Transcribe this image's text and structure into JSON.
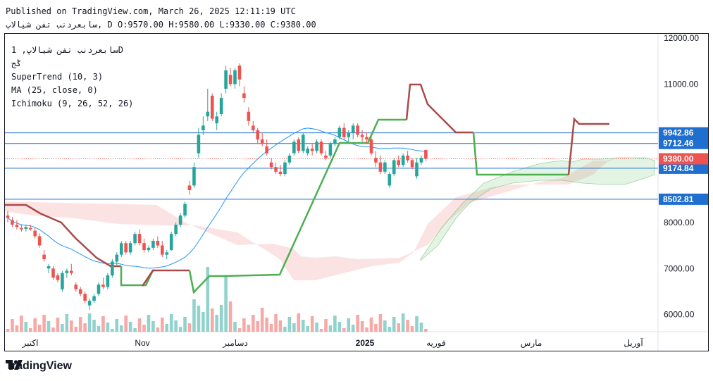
{
  "header": {
    "published": "Published on TradingView.com, March 26, 2025 12:11:19 UTC",
    "ohlc_line": "سابعردنب تفن شیالاپ, D O:9570.00 H:9580.00 L:9330.00 C:9380.00"
  },
  "legend": {
    "symbol": "سابعردنب تفن شیالاپ, 1D",
    "exchange": "ݣج",
    "supertrend": "SuperTrend (10, 3)",
    "ma": "MA (25, close, 0)",
    "ichimoku": "Ichimoku (9, 26, 52, 26)"
  },
  "brand": {
    "name": "TradingView"
  },
  "colors": {
    "up": "#26a69a",
    "down": "#ef5350",
    "st_up": "#4caf50",
    "st_down": "#a94a4a",
    "ma": "#2196f3",
    "hline": "#1e6fcf",
    "price_tag": "#ef5350"
  },
  "chart_data": {
    "type": "candlestick",
    "ylim": [
      5600,
      12150
    ],
    "y_ticks": [
      "12000.00",
      "11000.00",
      "8000.00",
      "7000.00",
      "6000.00"
    ],
    "y_tick_values": [
      12000,
      11000,
      8000,
      7000,
      6000
    ],
    "x_labels": [
      "اکتبر",
      "Nov",
      "دسامبر",
      "2025",
      "فوریه",
      "مارس",
      "آوریل"
    ],
    "x_label_bold": [
      false,
      false,
      false,
      true,
      false,
      false,
      false
    ],
    "horizontal_levels": [
      {
        "label": "9942.86",
        "value": 9942.86
      },
      {
        "label": "9712.46",
        "value": 9712.46
      },
      {
        "label": "9174.84",
        "value": 9174.84
      },
      {
        "label": "8502.81",
        "value": 8502.81
      }
    ],
    "last_price": {
      "label": "9380.00",
      "value": 9380
    },
    "candles": [
      {
        "o": 8150,
        "h": 8250,
        "l": 8000,
        "c": 8100
      },
      {
        "o": 8050,
        "h": 8120,
        "l": 7900,
        "c": 7950
      },
      {
        "o": 7950,
        "h": 8050,
        "l": 7850,
        "c": 7900
      },
      {
        "o": 7880,
        "h": 7960,
        "l": 7800,
        "c": 7850
      },
      {
        "o": 7860,
        "h": 7950,
        "l": 7800,
        "c": 7900
      },
      {
        "o": 7880,
        "h": 7950,
        "l": 7820,
        "c": 7850
      },
      {
        "o": 7820,
        "h": 7880,
        "l": 7650,
        "c": 7700
      },
      {
        "o": 7700,
        "h": 7760,
        "l": 7450,
        "c": 7500
      },
      {
        "o": 7300,
        "h": 7400,
        "l": 7150,
        "c": 7200
      },
      {
        "o": 7000,
        "h": 7100,
        "l": 6900,
        "c": 7050
      },
      {
        "o": 7000,
        "h": 7050,
        "l": 6750,
        "c": 6800
      },
      {
        "o": 6850,
        "h": 6900,
        "l": 6700,
        "c": 6750
      },
      {
        "o": 6550,
        "h": 6950,
        "l": 6500,
        "c": 6900
      },
      {
        "o": 6900,
        "h": 7000,
        "l": 6800,
        "c": 6950
      },
      {
        "o": 6950,
        "h": 7100,
        "l": 6850,
        "c": 6900
      },
      {
        "o": 6650,
        "h": 6700,
        "l": 6500,
        "c": 6550
      },
      {
        "o": 6550,
        "h": 6600,
        "l": 6400,
        "c": 6450
      },
      {
        "o": 6450,
        "h": 6500,
        "l": 6250,
        "c": 6300
      },
      {
        "o": 6200,
        "h": 6350,
        "l": 6100,
        "c": 6300
      },
      {
        "o": 6300,
        "h": 6450,
        "l": 6250,
        "c": 6400
      },
      {
        "o": 6450,
        "h": 6700,
        "l": 6400,
        "c": 6650
      },
      {
        "o": 6650,
        "h": 6800,
        "l": 6550,
        "c": 6600
      },
      {
        "o": 6600,
        "h": 6900,
        "l": 6550,
        "c": 6850
      },
      {
        "o": 6850,
        "h": 7200,
        "l": 6800,
        "c": 7150
      },
      {
        "o": 7150,
        "h": 7350,
        "l": 7050,
        "c": 7300
      },
      {
        "o": 7300,
        "h": 7600,
        "l": 7250,
        "c": 7550
      },
      {
        "o": 7550,
        "h": 7600,
        "l": 7300,
        "c": 7350
      },
      {
        "o": 7350,
        "h": 7600,
        "l": 7300,
        "c": 7550
      },
      {
        "o": 7550,
        "h": 7800,
        "l": 7500,
        "c": 7750
      },
      {
        "o": 7750,
        "h": 7850,
        "l": 7500,
        "c": 7550
      },
      {
        "o": 7550,
        "h": 7650,
        "l": 7350,
        "c": 7400
      },
      {
        "o": 7400,
        "h": 7500,
        "l": 7350,
        "c": 7450
      },
      {
        "o": 7450,
        "h": 7650,
        "l": 7400,
        "c": 7600
      },
      {
        "o": 7600,
        "h": 7700,
        "l": 7450,
        "c": 7500
      },
      {
        "o": 7500,
        "h": 7600,
        "l": 7250,
        "c": 7300
      },
      {
        "o": 7300,
        "h": 7400,
        "l": 7200,
        "c": 7350
      },
      {
        "o": 7400,
        "h": 7800,
        "l": 7380,
        "c": 7750
      },
      {
        "o": 7750,
        "h": 8000,
        "l": 7700,
        "c": 7950
      },
      {
        "o": 7950,
        "h": 8200,
        "l": 7900,
        "c": 8150
      },
      {
        "o": 8150,
        "h": 8450,
        "l": 8100,
        "c": 8400
      },
      {
        "o": 8800,
        "h": 8900,
        "l": 8600,
        "c": 8700
      },
      {
        "o": 8800,
        "h": 9300,
        "l": 8750,
        "c": 9200
      },
      {
        "o": 9500,
        "h": 10050,
        "l": 9400,
        "c": 9900
      },
      {
        "o": 10000,
        "h": 10300,
        "l": 9900,
        "c": 10100
      },
      {
        "o": 10300,
        "h": 10900,
        "l": 10200,
        "c": 10400
      },
      {
        "o": 10750,
        "h": 10800,
        "l": 10200,
        "c": 10250
      },
      {
        "o": 10150,
        "h": 10400,
        "l": 10000,
        "c": 10300
      },
      {
        "o": 10350,
        "h": 10800,
        "l": 10300,
        "c": 10700
      },
      {
        "o": 10900,
        "h": 11400,
        "l": 10800,
        "c": 11300
      },
      {
        "o": 11200,
        "h": 11350,
        "l": 10950,
        "c": 11000
      },
      {
        "o": 11000,
        "h": 11350,
        "l": 10900,
        "c": 11300
      },
      {
        "o": 11400,
        "h": 11450,
        "l": 10950,
        "c": 11100
      },
      {
        "o": 10800,
        "h": 10950,
        "l": 10600,
        "c": 10700
      },
      {
        "o": 10400,
        "h": 10500,
        "l": 10100,
        "c": 10200
      },
      {
        "o": 10100,
        "h": 10200,
        "l": 9950,
        "c": 10000
      },
      {
        "o": 10000,
        "h": 10050,
        "l": 9700,
        "c": 9800
      },
      {
        "o": 9800,
        "h": 9950,
        "l": 9650,
        "c": 9700
      },
      {
        "o": 9650,
        "h": 9800,
        "l": 9450,
        "c": 9500
      },
      {
        "o": 9300,
        "h": 9400,
        "l": 9150,
        "c": 9200
      },
      {
        "o": 9200,
        "h": 9300,
        "l": 9050,
        "c": 9100
      },
      {
        "o": 9100,
        "h": 9250,
        "l": 9000,
        "c": 9050
      },
      {
        "o": 9050,
        "h": 9350,
        "l": 9000,
        "c": 9300
      },
      {
        "o": 9300,
        "h": 9500,
        "l": 9250,
        "c": 9450
      },
      {
        "o": 9500,
        "h": 9800,
        "l": 9450,
        "c": 9750
      },
      {
        "o": 9800,
        "h": 9850,
        "l": 9500,
        "c": 9550
      },
      {
        "o": 9550,
        "h": 9950,
        "l": 9500,
        "c": 9900
      },
      {
        "o": 9500,
        "h": 9650,
        "l": 9450,
        "c": 9600
      },
      {
        "o": 9600,
        "h": 9700,
        "l": 9450,
        "c": 9550
      },
      {
        "o": 9550,
        "h": 9800,
        "l": 9500,
        "c": 9750
      },
      {
        "o": 9750,
        "h": 9800,
        "l": 9450,
        "c": 9500
      },
      {
        "o": 9450,
        "h": 9550,
        "l": 9350,
        "c": 9400
      },
      {
        "o": 9450,
        "h": 9750,
        "l": 9400,
        "c": 9700
      },
      {
        "o": 9700,
        "h": 9850,
        "l": 9650,
        "c": 9800
      },
      {
        "o": 9850,
        "h": 10100,
        "l": 9800,
        "c": 10050
      },
      {
        "o": 10050,
        "h": 10150,
        "l": 9800,
        "c": 9850
      },
      {
        "o": 9850,
        "h": 10000,
        "l": 9750,
        "c": 9950
      },
      {
        "o": 9950,
        "h": 10150,
        "l": 9800,
        "c": 10100
      },
      {
        "o": 10100,
        "h": 10150,
        "l": 9850,
        "c": 9900
      },
      {
        "o": 9900,
        "h": 10000,
        "l": 9750,
        "c": 9850
      },
      {
        "o": 9850,
        "h": 9950,
        "l": 9700,
        "c": 9800
      },
      {
        "o": 9800,
        "h": 9850,
        "l": 9450,
        "c": 9500
      },
      {
        "o": 9400,
        "h": 9550,
        "l": 9200,
        "c": 9300
      },
      {
        "o": 9300,
        "h": 9450,
        "l": 9050,
        "c": 9100
      },
      {
        "o": 9100,
        "h": 9350,
        "l": 9050,
        "c": 9300
      },
      {
        "o": 8800,
        "h": 9100,
        "l": 8750,
        "c": 9050
      },
      {
        "o": 9050,
        "h": 9400,
        "l": 9000,
        "c": 9350
      },
      {
        "o": 9350,
        "h": 9450,
        "l": 9200,
        "c": 9250
      },
      {
        "o": 9250,
        "h": 9500,
        "l": 9200,
        "c": 9450
      },
      {
        "o": 9450,
        "h": 9550,
        "l": 9300,
        "c": 9350
      },
      {
        "o": 9350,
        "h": 9400,
        "l": 9150,
        "c": 9200
      },
      {
        "o": 9000,
        "h": 9400,
        "l": 8950,
        "c": 9300
      },
      {
        "o": 9300,
        "h": 9450,
        "l": 9250,
        "c": 9400
      },
      {
        "o": 9570,
        "h": 9580,
        "l": 9330,
        "c": 9380
      }
    ]
  }
}
